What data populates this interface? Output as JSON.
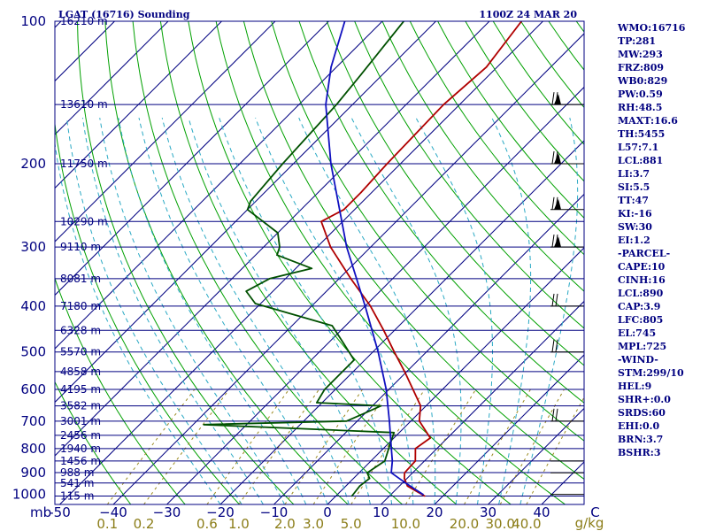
{
  "title_left": "LGAT (16716) Sounding",
  "title_right": "1100Z 24 MAR 20",
  "colors": {
    "frame": "#000080",
    "isotherm": "#000080",
    "dry_adiabat": "#00a000",
    "moist_adiabat": "#2aa9c4",
    "mixing_ratio": "#9a8a20",
    "temperature": "#b00000",
    "dewpoint": "#005000",
    "parcel": "#1010c0",
    "labels": "#000080",
    "mixing_labels": "#8b7d18"
  },
  "pressure_labels": [
    {
      "p": 1000,
      "label": "1000"
    },
    {
      "p": 900,
      "label": "900"
    },
    {
      "p": 800,
      "label": "800"
    },
    {
      "p": 700,
      "label": "700"
    },
    {
      "p": 600,
      "label": "600"
    },
    {
      "p": 500,
      "label": "500"
    },
    {
      "p": 400,
      "label": "400"
    },
    {
      "p": 300,
      "label": "300"
    },
    {
      "p": 200,
      "label": "200"
    },
    {
      "p": 100,
      "label": "100"
    }
  ],
  "axis_unit_left": "mb",
  "temperature_ticks": [
    {
      "t": -50,
      "label": "-50"
    },
    {
      "t": -40,
      "label": "−40"
    },
    {
      "t": -30,
      "label": "−30"
    },
    {
      "t": -20,
      "label": "−20"
    },
    {
      "t": -10,
      "label": "−10"
    },
    {
      "t": 0,
      "label": "0"
    },
    {
      "t": 10,
      "label": "10"
    },
    {
      "t": 20,
      "label": "20"
    },
    {
      "t": 30,
      "label": "30"
    },
    {
      "t": 40,
      "label": "40"
    },
    {
      "t": 50,
      "label": "C"
    }
  ],
  "mixing_ratio_labels": [
    "0.1",
    "0.2",
    "0.6",
    "1.0",
    "2.0",
    "3.0",
    "5.0",
    "10.0",
    "20.0",
    "30.0",
    "40.0"
  ],
  "mixing_ratio_unit": "g/kg",
  "height_levels": [
    {
      "p": 1008,
      "label": "115 m"
    },
    {
      "p": 946,
      "label": "541 m"
    },
    {
      "p": 899,
      "label": "988 m"
    },
    {
      "p": 850,
      "label": "1456 m"
    },
    {
      "p": 800,
      "label": "1940 m"
    },
    {
      "p": 750,
      "label": "2456 m"
    },
    {
      "p": 700,
      "label": "3001 m"
    },
    {
      "p": 650,
      "label": "3582 m"
    },
    {
      "p": 600,
      "label": "4195 m"
    },
    {
      "p": 550,
      "label": "4858 m"
    },
    {
      "p": 500,
      "label": "5570 m"
    },
    {
      "p": 450,
      "label": "6328 m"
    },
    {
      "p": 400,
      "label": "7180 m"
    },
    {
      "p": 350,
      "label": "8081 m"
    },
    {
      "p": 300,
      "label": "9110 m"
    },
    {
      "p": 265,
      "label": "10290 m"
    },
    {
      "p": 200,
      "label": "11750 m"
    },
    {
      "p": 150,
      "label": "13610 m"
    },
    {
      "p": 100,
      "label": "16210 m"
    }
  ],
  "stats": [
    "WMO:16716",
    "TP:281",
    "MW:293",
    "FRZ:809",
    "WB0:829",
    "PW:0.59",
    "RH:48.5",
    "MAXT:16.6",
    "TH:5455",
    "L57:7.1",
    "LCL:881",
    "LI:3.7",
    "SI:5.5",
    "TT:47",
    "KI:-16",
    "SW:30",
    "EI:1.2",
    "-PARCEL-",
    "CAPE:10",
    "CINH:16",
    "LCL:890",
    "CAP:3.9",
    "LFC:805",
    "EL:745",
    "MPL:725",
    "-WIND-",
    "STM:299/10",
    "HEL:9",
    "SHR+:0.0",
    "SRDS:60",
    "EHI:0.0",
    "BRN:3.7",
    "BSHR:3"
  ],
  "chart_data": {
    "type": "skew-t log-p sounding",
    "title": "LGAT (16716) Sounding",
    "valid_time": "1100Z 24 MAR 20",
    "xlabel": "C",
    "ylabel": "mb",
    "pressure_range_mb": [
      1050,
      100
    ],
    "temperature_range_c": [
      -50,
      50
    ],
    "skew": "isotherms slant to the right with height",
    "series": [
      {
        "name": "temperature",
        "points": [
          [
            1008,
            16.6
          ],
          [
            960,
            11.5
          ],
          [
            925,
            9.5
          ],
          [
            900,
            8.5
          ],
          [
            850,
            8.3
          ],
          [
            800,
            6.0
          ],
          [
            760,
            6.8
          ],
          [
            700,
            1.6
          ],
          [
            650,
            -1.0
          ],
          [
            600,
            -5.5
          ],
          [
            550,
            -10.4
          ],
          [
            500,
            -16.0
          ],
          [
            450,
            -22.0
          ],
          [
            400,
            -29.0
          ],
          [
            350,
            -37.8
          ],
          [
            300,
            -47.5
          ],
          [
            265,
            -54.0
          ],
          [
            250,
            -52.0
          ],
          [
            230,
            -52.0
          ],
          [
            200,
            -52.5
          ],
          [
            150,
            -53.0
          ],
          [
            125,
            -52.0
          ],
          [
            100,
            -54.0
          ]
        ]
      },
      {
        "name": "dewpoint",
        "points": [
          [
            1008,
            3.0
          ],
          [
            960,
            2.6
          ],
          [
            925,
            3.0
          ],
          [
            900,
            1.5
          ],
          [
            850,
            2.6
          ],
          [
            800,
            1.0
          ],
          [
            740,
            -1.0
          ],
          [
            712,
            -38.0
          ],
          [
            700,
            -12.0
          ],
          [
            672,
            -10.0
          ],
          [
            650,
            -8.4
          ],
          [
            640,
            -21.0
          ],
          [
            600,
            -22.0
          ],
          [
            520,
            -22.0
          ],
          [
            480,
            -27.0
          ],
          [
            440,
            -32.5
          ],
          [
            395,
            -51.0
          ],
          [
            372,
            -55.0
          ],
          [
            350,
            -53.0
          ],
          [
            333,
            -47.0
          ],
          [
            312,
            -56.0
          ],
          [
            300,
            -57.0
          ],
          [
            280,
            -60.0
          ],
          [
            250,
            -70.0
          ],
          [
            240,
            -71.0
          ],
          [
            200,
            -72.0
          ],
          [
            150,
            -73.0
          ],
          [
            130,
            -74.0
          ],
          [
            100,
            -76.0
          ]
        ]
      },
      {
        "name": "parcel",
        "points": [
          [
            1000,
            16.0
          ],
          [
            950,
            11.0
          ],
          [
            900,
            6.0
          ],
          [
            850,
            4.0
          ],
          [
            800,
            1.5
          ],
          [
            700,
            -4.0
          ],
          [
            600,
            -10.5
          ],
          [
            500,
            -19.0
          ],
          [
            400,
            -30.0
          ],
          [
            300,
            -44.5
          ],
          [
            200,
            -63.0
          ],
          [
            150,
            -75.0
          ],
          [
            125,
            -81.0
          ],
          [
            100,
            -87.0
          ]
        ]
      }
    ],
    "wind_barbs_mb": [
      1000,
      900,
      850,
      700,
      500,
      400,
      300,
      250,
      200,
      150
    ],
    "grid": true
  }
}
